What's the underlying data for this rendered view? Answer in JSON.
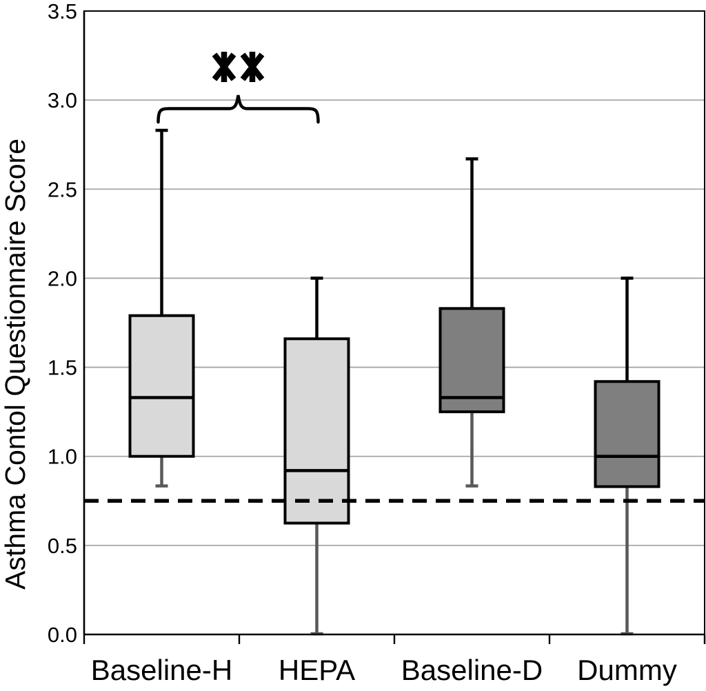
{
  "figure": {
    "kind": "box-and-whisker plot",
    "background": "#ffffff"
  },
  "chart_data": {
    "type": "boxplot",
    "title": "",
    "xlabel": "",
    "ylabel": "Asthma Contol Questionnaire Score",
    "ylim": [
      0.0,
      3.5
    ],
    "ytick_step": 0.5,
    "yticks": [
      "0.0",
      "0.5",
      "1.0",
      "1.5",
      "2.0",
      "2.5",
      "3.0",
      "3.5"
    ],
    "grid": true,
    "legend": "none",
    "categories": [
      "Baseline-H",
      "HEPA",
      "Baseline-D",
      "Dummy"
    ],
    "boxes": [
      {
        "category": "Baseline-H",
        "whisker_low": 0.83,
        "q1": 1.0,
        "median": 1.33,
        "q3": 1.79,
        "whisker_high": 2.83,
        "fill": "#d9d9d9"
      },
      {
        "category": "HEPA",
        "whisker_low": 0.0,
        "q1": 0.625,
        "median": 0.92,
        "q3": 1.66,
        "whisker_high": 2.0,
        "fill": "#d9d9d9"
      },
      {
        "category": "Baseline-D",
        "whisker_low": 0.83,
        "q1": 1.25,
        "median": 1.33,
        "q3": 1.83,
        "whisker_high": 2.67,
        "fill": "#7f7f7f"
      },
      {
        "category": "Dummy",
        "whisker_low": 0.0,
        "q1": 0.83,
        "median": 1.0,
        "q3": 1.42,
        "whisker_high": 2.0,
        "fill": "#7f7f7f"
      }
    ],
    "reference_line": {
      "value": 0.75,
      "style": "dashed",
      "color": "#000000"
    },
    "annotation": {
      "text": "**",
      "between": [
        "Baseline-H",
        "HEPA"
      ],
      "shape": "curly-bracket"
    },
    "colors": {
      "box_border": "#000000",
      "median": "#000000",
      "upper_whisker": "#000000",
      "lower_whisker": "#595959",
      "gridline": "#a6a6a6",
      "axis": "#000000",
      "light_box_fill": "#d9d9d9",
      "dark_box_fill": "#7f7f7f"
    }
  }
}
